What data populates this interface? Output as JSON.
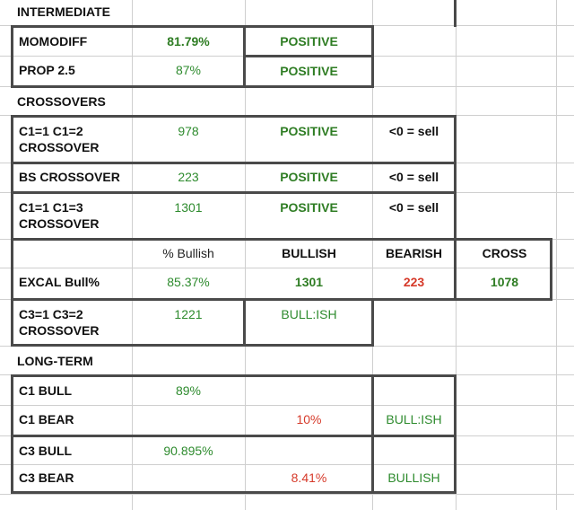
{
  "sections": {
    "intermediate": "INTERMEDIATE",
    "crossovers": "CROSSOVERS",
    "long_term": "LONG-TERM"
  },
  "rows": {
    "momodiff": {
      "label": "MOMODIFF",
      "value": "81.79%",
      "status": "POSITIVE"
    },
    "prop": {
      "label": "PROP 2.5",
      "value": "87%",
      "status": "POSITIVE"
    },
    "c1c2": {
      "label": "C1=1 C1=2\nCROSSOVER",
      "value": "978",
      "status": "POSITIVE",
      "note": "<0 = sell"
    },
    "bs": {
      "label": "BS CROSSOVER",
      "value": "223",
      "status": "POSITIVE",
      "note": "<0 = sell"
    },
    "c1c3": {
      "label": "C1=1 C1=3\nCROSSOVER",
      "value": "1301",
      "status": "POSITIVE",
      "note": "<0 = sell"
    },
    "excal_header": {
      "pct": "% Bullish",
      "bullish": "BULLISH",
      "bearish": "BEARISH",
      "cross": "CROSS"
    },
    "excal": {
      "label": "EXCAL Bull%",
      "pct": "85.37%",
      "bullish": "1301",
      "bearish": "223",
      "cross": "1078"
    },
    "c3c2": {
      "label": "C3=1 C3=2\nCROSSOVER",
      "value": "1221",
      "status": "BULL:ISH"
    },
    "c1bull": {
      "label": "C1 BULL",
      "value": "89%"
    },
    "c1bear": {
      "label": "C1 BEAR",
      "value": "10%",
      "status": "BULL:ISH"
    },
    "c3bull": {
      "label": "C3 BULL",
      "value": "90.895%"
    },
    "c3bear": {
      "label": "C3 BEAR",
      "value": "8.41%",
      "status": "BULLISH"
    }
  }
}
